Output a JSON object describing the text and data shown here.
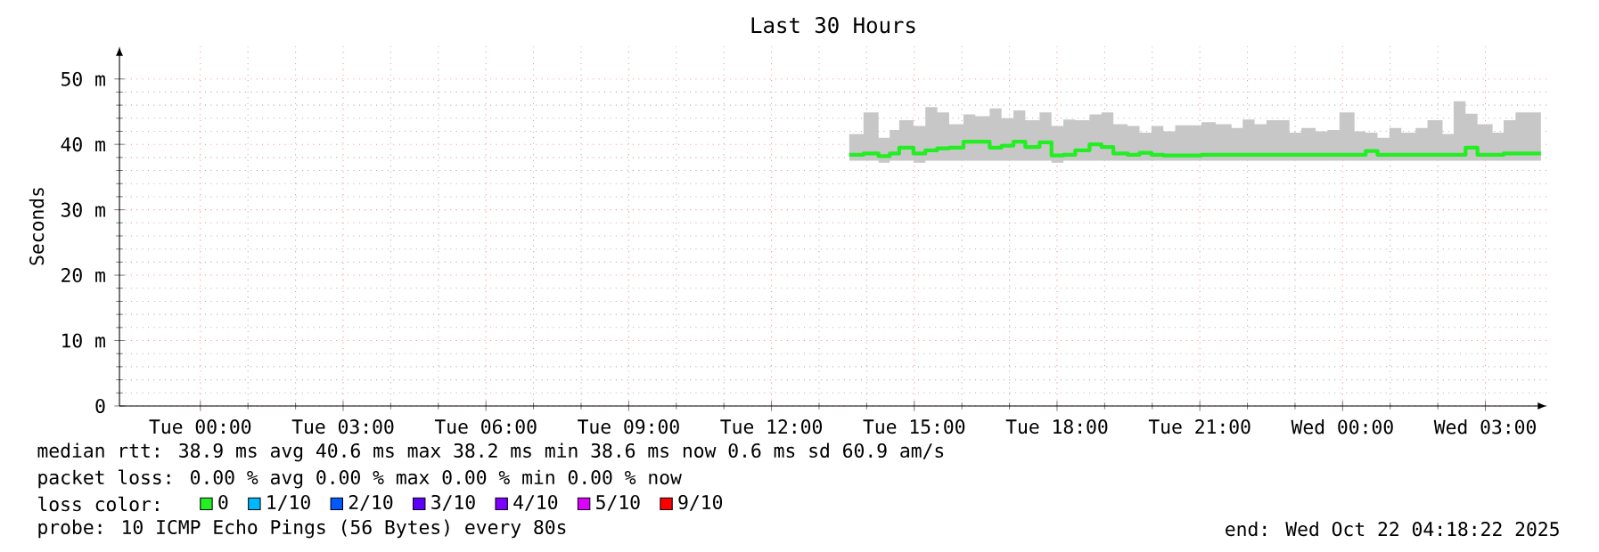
{
  "chart_data": {
    "type": "step",
    "title": "Last 30 Hours",
    "ylabel": "Seconds",
    "legend_title": "loss color:",
    "x": [
      "2025-10-21T13:38",
      "2025-10-21T13:56",
      "2025-10-21T14:15",
      "2025-10-21T14:29",
      "2025-10-21T14:41",
      "2025-10-21T14:59",
      "2025-10-21T15:14",
      "2025-10-21T15:29",
      "2025-10-21T15:44",
      "2025-10-21T16:02",
      "2025-10-21T16:17",
      "2025-10-21T16:35",
      "2025-10-21T16:50",
      "2025-10-21T17:05",
      "2025-10-21T17:20",
      "2025-10-21T17:38",
      "2025-10-21T17:53",
      "2025-10-21T18:08",
      "2025-10-21T18:23",
      "2025-10-21T18:41",
      "2025-10-21T18:56",
      "2025-10-21T19:11",
      "2025-10-21T19:29",
      "2025-10-21T19:44",
      "2025-10-21T19:59",
      "2025-10-21T20:14",
      "2025-10-21T20:29",
      "2025-10-21T21:02",
      "2025-10-21T21:20",
      "2025-10-21T21:40",
      "2025-10-21T21:54",
      "2025-10-21T22:09",
      "2025-10-21T22:24",
      "2025-10-21T22:53",
      "2025-10-21T23:08",
      "2025-10-21T23:26",
      "2025-10-21T23:41",
      "2025-10-21T23:56",
      "2025-10-22T00:15",
      "2025-10-22T00:29",
      "2025-10-22T00:44",
      "2025-10-22T00:59",
      "2025-10-22T01:14",
      "2025-10-22T01:32",
      "2025-10-22T01:47",
      "2025-10-22T02:06",
      "2025-10-22T02:20",
      "2025-10-22T02:35",
      "2025-10-22T02:50",
      "2025-10-22T03:09",
      "2025-10-22T03:23",
      "2025-10-22T03:38",
      "2025-10-22T04:10"
    ],
    "series": [
      {
        "name": "0",
        "color": "#22ee22",
        "values": [
          38.4,
          38.6,
          38.2,
          38.6,
          39.5,
          38.6,
          39.1,
          39.4,
          39.5,
          40.4,
          40.4,
          39.5,
          39.8,
          40.4,
          39.6,
          40.3,
          38.3,
          38.4,
          39.1,
          40.0,
          39.6,
          38.6,
          38.4,
          38.7,
          38.4,
          38.3,
          38.3,
          38.4,
          38.4,
          38.4,
          38.4,
          38.4,
          38.4,
          38.4,
          38.4,
          38.4,
          38.4,
          38.4,
          38.4,
          39.0,
          38.4,
          38.4,
          38.4,
          38.4,
          38.4,
          38.4,
          38.4,
          39.5,
          38.4,
          38.4,
          38.6,
          38.6,
          38.6
        ],
        "lower": [
          37.5,
          37.5,
          37.2,
          37.5,
          37.5,
          37.2,
          37.5,
          37.5,
          37.5,
          37.5,
          37.5,
          37.5,
          37.5,
          37.5,
          37.5,
          37.5,
          37.2,
          37.5,
          37.5,
          37.5,
          37.5,
          37.5,
          37.5,
          37.5,
          37.5,
          37.5,
          37.5,
          37.5,
          37.5,
          37.5,
          37.5,
          37.5,
          37.5,
          37.5,
          37.5,
          37.5,
          37.5,
          37.5,
          37.5,
          37.5,
          37.5,
          37.5,
          37.5,
          37.5,
          37.5,
          37.5,
          37.5,
          37.5,
          37.5,
          37.5,
          37.5,
          37.5,
          37.5
        ],
        "upper": [
          41.6,
          44.9,
          41.0,
          42.2,
          43.7,
          42.8,
          45.7,
          44.9,
          43.1,
          44.6,
          44.3,
          45.5,
          44.0,
          45.2,
          43.7,
          44.9,
          42.8,
          43.8,
          43.7,
          44.6,
          44.9,
          43.1,
          42.8,
          41.8,
          42.8,
          42.0,
          42.9,
          43.4,
          43.1,
          42.5,
          43.8,
          43.1,
          43.7,
          41.8,
          42.5,
          42.0,
          42.2,
          44.9,
          42.0,
          41.8,
          41.0,
          42.5,
          41.8,
          42.5,
          43.7,
          41.6,
          46.6,
          44.7,
          43.1,
          41.8,
          43.7,
          44.9,
          44.9
        ]
      },
      {
        "name": "1/10",
        "color": "#00b8ff",
        "values": [
          null,
          null,
          null,
          null,
          null,
          null,
          null,
          null,
          null,
          null,
          null,
          null,
          null,
          null,
          null,
          null,
          null,
          null,
          null,
          null,
          null,
          null,
          null,
          null,
          null,
          null,
          null,
          null,
          null,
          null,
          null,
          null,
          null,
          null,
          null,
          null,
          null,
          null,
          null,
          null,
          null,
          null,
          null,
          null,
          null,
          null,
          null,
          null,
          null,
          null,
          null,
          null,
          null
        ]
      },
      {
        "name": "2/10",
        "color": "#0059ff",
        "values": [
          null,
          null,
          null,
          null,
          null,
          null,
          null,
          null,
          null,
          null,
          null,
          null,
          null,
          null,
          null,
          null,
          null,
          null,
          null,
          null,
          null,
          null,
          null,
          null,
          null,
          null,
          null,
          null,
          null,
          null,
          null,
          null,
          null,
          null,
          null,
          null,
          null,
          null,
          null,
          null,
          null,
          null,
          null,
          null,
          null,
          null,
          null,
          null,
          null,
          null,
          null,
          null,
          null
        ]
      },
      {
        "name": "3/10",
        "color": "#5e00ff",
        "values": [
          null,
          null,
          null,
          null,
          null,
          null,
          null,
          null,
          null,
          null,
          null,
          null,
          null,
          null,
          null,
          null,
          null,
          null,
          null,
          null,
          null,
          null,
          null,
          null,
          null,
          null,
          null,
          null,
          null,
          null,
          null,
          null,
          null,
          null,
          null,
          null,
          null,
          null,
          null,
          null,
          null,
          null,
          null,
          null,
          null,
          null,
          null,
          null,
          null,
          null,
          null,
          null,
          null
        ]
      },
      {
        "name": "4/10",
        "color": "#7e00ff",
        "values": [
          null,
          null,
          null,
          null,
          null,
          null,
          null,
          null,
          null,
          null,
          null,
          null,
          null,
          null,
          null,
          null,
          null,
          null,
          null,
          null,
          null,
          null,
          null,
          null,
          null,
          null,
          null,
          null,
          null,
          null,
          null,
          null,
          null,
          null,
          null,
          null,
          null,
          null,
          null,
          null,
          null,
          null,
          null,
          null,
          null,
          null,
          null,
          null,
          null,
          null,
          null,
          null,
          null
        ]
      },
      {
        "name": "5/10",
        "color": "#dd00ff",
        "values": [
          null,
          null,
          null,
          null,
          null,
          null,
          null,
          null,
          null,
          null,
          null,
          null,
          null,
          null,
          null,
          null,
          null,
          null,
          null,
          null,
          null,
          null,
          null,
          null,
          null,
          null,
          null,
          null,
          null,
          null,
          null,
          null,
          null,
          null,
          null,
          null,
          null,
          null,
          null,
          null,
          null,
          null,
          null,
          null,
          null,
          null,
          null,
          null,
          null,
          null,
          null,
          null,
          null
        ]
      },
      {
        "name": "9/10",
        "color": "#ff0000",
        "values": [
          null,
          null,
          null,
          null,
          null,
          null,
          null,
          null,
          null,
          null,
          null,
          null,
          null,
          null,
          null,
          null,
          null,
          null,
          null,
          null,
          null,
          null,
          null,
          null,
          null,
          null,
          null,
          null,
          null,
          null,
          null,
          null,
          null,
          null,
          null,
          null,
          null,
          null,
          null,
          null,
          null,
          null,
          null,
          null,
          null,
          null,
          null,
          null,
          null,
          null,
          null,
          null,
          null
        ]
      }
    ],
    "xlim": [
      "2025-10-20T22:18",
      "2025-10-22T04:18"
    ],
    "xticks": [
      {
        "value": "2025-10-21T00:00",
        "label": "Tue 00:00"
      },
      {
        "value": "2025-10-21T03:00",
        "label": "Tue 03:00"
      },
      {
        "value": "2025-10-21T06:00",
        "label": "Tue 06:00"
      },
      {
        "value": "2025-10-21T09:00",
        "label": "Tue 09:00"
      },
      {
        "value": "2025-10-21T12:00",
        "label": "Tue 12:00"
      },
      {
        "value": "2025-10-21T15:00",
        "label": "Tue 15:00"
      },
      {
        "value": "2025-10-21T18:00",
        "label": "Tue 18:00"
      },
      {
        "value": "2025-10-21T21:00",
        "label": "Tue 21:00"
      },
      {
        "value": "2025-10-22T00:00",
        "label": "Wed 00:00"
      },
      {
        "value": "2025-10-22T03:00",
        "label": "Wed 03:00"
      }
    ],
    "ylim": [
      0,
      55
    ],
    "yticks": [
      0,
      {
        "value": 10,
        "label": "10 m"
      },
      {
        "value": 20,
        "label": "20 m"
      },
      {
        "value": 30,
        "label": "30 m"
      },
      {
        "value": 40,
        "label": "40 m"
      },
      {
        "value": 50,
        "label": "50 m"
      }
    ],
    "grid": true,
    "legend": "bottom",
    "line_style": "solid",
    "marker": "none",
    "annotations": [
      "median rtt:  38.9 ms avg  40.6 ms max  38.2 ms min  38.6 ms now  0.6 ms sd  60.9  am/s",
      "packet loss: 0.00 % avg  0.00 % max  0.00 % min  0.00 % now",
      "probe:       10 ICMP Echo Pings (56 Bytes) every 80s",
      "end: Wed Oct 22 04:18:22 2025"
    ]
  }
}
